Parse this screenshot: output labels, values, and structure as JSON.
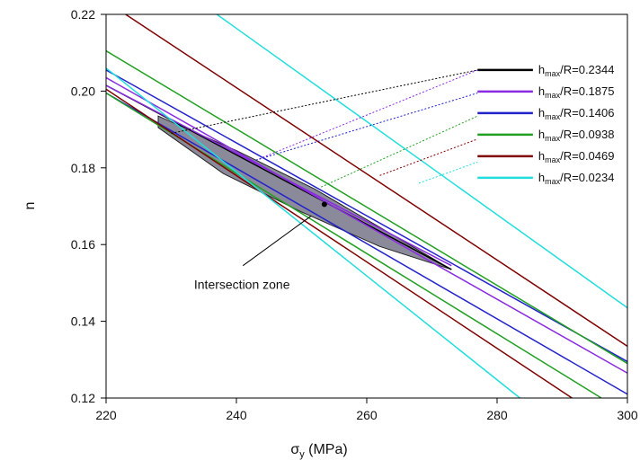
{
  "chart_data": {
    "type": "line",
    "xlabel_symbol": "σ",
    "xlabel_subscript": "y",
    "xlabel_unit": " (MPa)",
    "ylabel": "n",
    "xlim": [
      220,
      300
    ],
    "ylim": [
      0.12,
      0.22
    ],
    "xticks": [
      220,
      240,
      260,
      280,
      300
    ],
    "yticks": [
      0.12,
      0.14,
      0.16,
      0.18,
      0.2,
      0.22
    ],
    "grid": false,
    "legend_placement": "top-right",
    "series": [
      {
        "name": "hmax/R=0.2344",
        "label_main": "h",
        "label_sub": "max",
        "label_rest": "/R=0.2344",
        "color": "#000000",
        "lines": [
          [
            [
              220,
              0.2015
            ],
            [
              273,
              0.1535
            ]
          ]
        ],
        "leader": [
          [
            230,
            0.189
          ],
          [
            277,
            0.2055
          ]
        ]
      },
      {
        "name": "hmax/R=0.1875",
        "label_main": "h",
        "label_sub": "max",
        "label_rest": "/R=0.1875",
        "color": "#8a2be2",
        "lines": [
          [
            [
              220,
              0.2035
            ],
            [
              300,
              0.1265
            ]
          ],
          [
            [
              220,
              0.2015
            ],
            [
              273,
              0.1545
            ]
          ]
        ],
        "leader": [
          [
            243,
            0.182
          ],
          [
            277,
            0.2055
          ]
        ]
      },
      {
        "name": "hmax/R=0.1406",
        "label_main": "h",
        "label_sub": "max",
        "label_rest": "/R=0.1406",
        "color": "#2222cc",
        "lines": [
          [
            [
              220,
              0.2055
            ],
            [
              300,
              0.1295
            ]
          ],
          [
            [
              220,
              0.1995
            ],
            [
              300,
              0.121
            ]
          ]
        ],
        "leader": [
          [
            243,
            0.182
          ],
          [
            277,
            0.1995
          ]
        ]
      },
      {
        "name": "hmax/R=0.0938",
        "label_main": "h",
        "label_sub": "max",
        "label_rest": "/R=0.0938",
        "color": "#22a022",
        "lines": [
          [
            [
              220,
              0.2105
            ],
            [
              300,
              0.129
            ]
          ],
          [
            [
              220,
              0.1995
            ],
            [
              296,
              0.12
            ]
          ]
        ],
        "leader": [
          [
            253,
            0.175
          ],
          [
            277,
            0.1935
          ]
        ]
      },
      {
        "name": "hmax/R=0.0469",
        "label_main": "h",
        "label_sub": "max",
        "label_rest": "/R=0.0469",
        "color": "#800000",
        "lines": [
          [
            [
              223,
              0.22
            ],
            [
              300,
              0.1335
            ]
          ],
          [
            [
              220,
              0.2005
            ],
            [
              291.5,
              0.12
            ]
          ]
        ],
        "leader": [
          [
            262,
            0.178
          ],
          [
            277,
            0.1875
          ]
        ]
      },
      {
        "name": "hmax/R=0.0234",
        "label_main": "h",
        "label_sub": "max",
        "label_rest": "/R=0.0234",
        "color": "#22dddd",
        "lines": [
          [
            [
              237,
              0.22
            ],
            [
              300,
              0.1435
            ]
          ],
          [
            [
              220,
              0.206
            ],
            [
              283.5,
              0.12
            ]
          ]
        ],
        "leader": [
          [
            268,
            0.176
          ],
          [
            277,
            0.1815
          ]
        ]
      }
    ],
    "intersection_zone": {
      "color": "#8a8a9a",
      "polygon": [
        [
          228,
          0.1935
        ],
        [
          240,
          0.1845
        ],
        [
          252,
          0.1745
        ],
        [
          264,
          0.1625
        ],
        [
          273,
          0.1535
        ],
        [
          262,
          0.1595
        ],
        [
          250,
          0.1685
        ],
        [
          238,
          0.1785
        ],
        [
          228,
          0.1905
        ]
      ],
      "point": [
        253.5,
        0.1705
      ]
    },
    "annotation": {
      "text": "Intersection zone",
      "arrow_from": [
        241,
        0.1545
      ],
      "arrow_to": [
        251.5,
        0.1675
      ],
      "text_at": [
        233.5,
        0.1485
      ]
    }
  }
}
